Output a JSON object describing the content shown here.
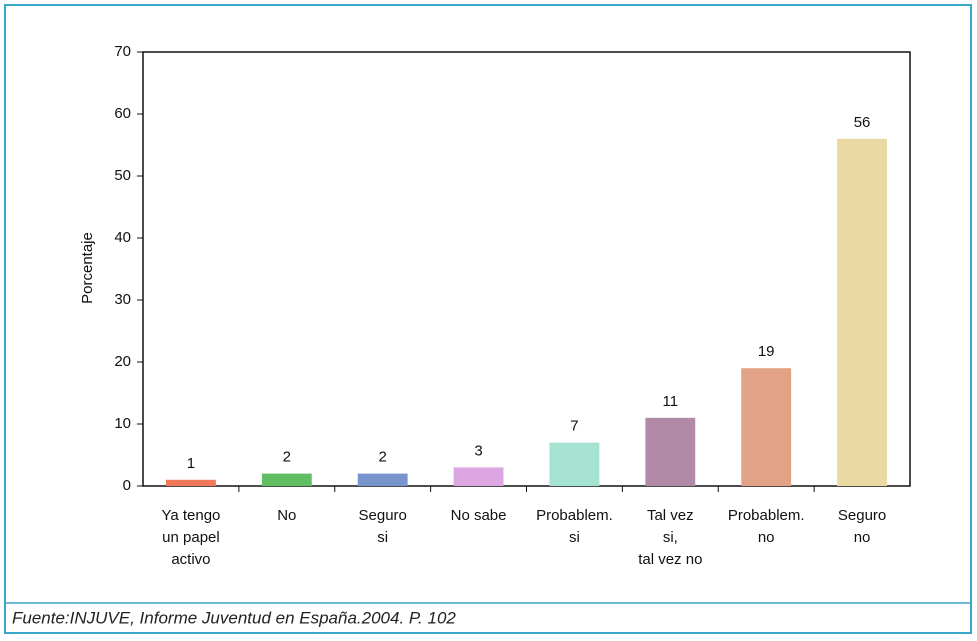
{
  "chart_data": {
    "type": "bar",
    "ylabel": "Porcentaje",
    "categories": [
      [
        "Ya tengo",
        "un papel",
        "activo"
      ],
      [
        "No"
      ],
      [
        "Seguro",
        "si"
      ],
      [
        "No sabe"
      ],
      [
        "Probablem.",
        "si"
      ],
      [
        "Tal vez",
        "si,",
        "tal vez no"
      ],
      [
        "Probablem.",
        "no"
      ],
      [
        "Seguro",
        "no"
      ]
    ],
    "values": [
      1,
      2,
      2,
      3,
      7,
      11,
      19,
      56
    ],
    "colors": [
      "#f2785a",
      "#62be62",
      "#7894cc",
      "#dba6e2",
      "#a6e2d2",
      "#b08aa6",
      "#e2a286",
      "#ead9a2"
    ],
    "ylim": [
      0,
      70
    ],
    "yticks": [
      0,
      10,
      20,
      30,
      40,
      50,
      60,
      70
    ],
    "grid": false
  },
  "caption": "Fuente:INJUVE, Informe Juventud en España.2004. P. 102"
}
